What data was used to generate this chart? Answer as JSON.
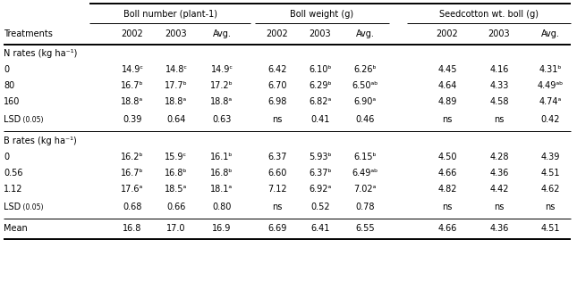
{
  "col_group_labels": [
    "Boll number (plant-1)",
    "Boll weight (g)",
    "Seedcotton wt. boll (g)"
  ],
  "sub_col_labels": [
    "2002",
    "2003",
    "Avg.",
    "2002",
    "2003",
    "Avg.",
    "2002",
    "2003",
    "Avg."
  ],
  "rows": [
    {
      "label": "N rates (kg ha⁻¹)",
      "values": [
        "",
        "",
        "",
        "",
        "",
        "",
        "",
        "",
        ""
      ],
      "header": true
    },
    {
      "label": "0",
      "values": [
        "14.9ᶜ",
        "14.8ᶜ",
        "14.9ᶜ",
        "6.42",
        "6.10ᵇ",
        "6.26ᵇ",
        "4.45",
        "4.16",
        "4.31ᵇ"
      ],
      "header": false
    },
    {
      "label": "80",
      "values": [
        "16.7ᵇ",
        "17.7ᵇ",
        "17.2ᵇ",
        "6.70",
        "6.29ᵇ",
        "6.50ᵃᵇ",
        "4.64",
        "4.33",
        "4.49ᵃᵇ"
      ],
      "header": false
    },
    {
      "label": "160",
      "values": [
        "18.8ᵃ",
        "18.8ᵃ",
        "18.8ᵃ",
        "6.98",
        "6.82ᵃ",
        "6.90ᵃ",
        "4.89",
        "4.58",
        "4.74ᵃ"
      ],
      "header": false
    },
    {
      "label": "LSD (0.05)",
      "values": [
        "0.39",
        "0.64",
        "0.63",
        "ns",
        "0.41",
        "0.46",
        "ns",
        "ns",
        "0.42"
      ],
      "header": false,
      "lsd": true
    },
    {
      "label": "B rates (kg ha⁻¹)",
      "values": [
        "",
        "",
        "",
        "",
        "",
        "",
        "",
        "",
        ""
      ],
      "header": true
    },
    {
      "label": "0",
      "values": [
        "16.2ᵇ",
        "15.9ᶜ",
        "16.1ᵇ",
        "6.37",
        "5.93ᵇ",
        "6.15ᵇ",
        "4.50",
        "4.28",
        "4.39"
      ],
      "header": false
    },
    {
      "label": "0.56",
      "values": [
        "16.7ᵇ",
        "16.8ᵇ",
        "16.8ᵇ",
        "6.60",
        "6.37ᵇ",
        "6.49ᵃᵇ",
        "4.66",
        "4.36",
        "4.51"
      ],
      "header": false
    },
    {
      "label": "1.12",
      "values": [
        "17.6ᵃ",
        "18.5ᵃ",
        "18.1ᵃ",
        "7.12",
        "6.92ᵃ",
        "7.02ᵃ",
        "4.82",
        "4.42",
        "4.62"
      ],
      "header": false
    },
    {
      "label": "LSD (0.05)",
      "values": [
        "0.68",
        "0.66",
        "0.80",
        "ns",
        "0.52",
        "0.78",
        "ns",
        "ns",
        "ns"
      ],
      "header": false,
      "lsd": true
    },
    {
      "label": "Mean",
      "values": [
        "16.8",
        "17.0",
        "16.9",
        "6.69",
        "6.41",
        "6.55",
        "4.66",
        "4.36",
        "4.51"
      ],
      "header": false,
      "mean": true
    }
  ],
  "bg_color": "#ffffff",
  "text_color": "#000000",
  "font_size": 7.0,
  "lsd_label_main": "LSD",
  "lsd_label_sub": "(0.05)"
}
